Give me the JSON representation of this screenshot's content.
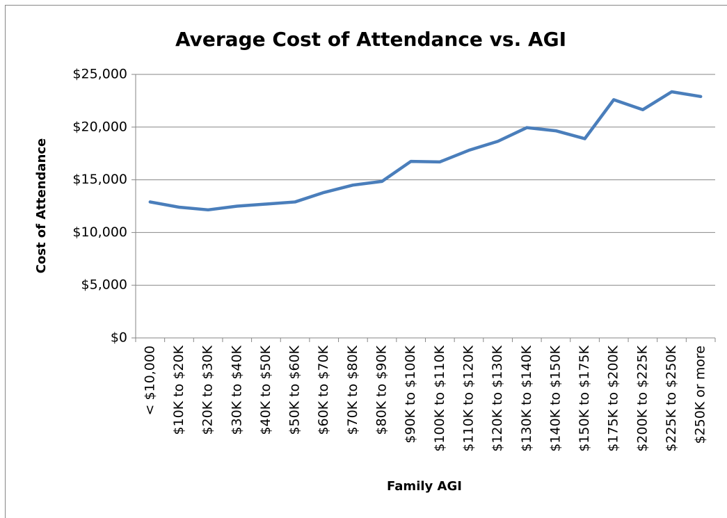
{
  "chart_data": {
    "type": "line",
    "title": "Average Cost of Attendance vs. AGI",
    "x_label": "Family AGI",
    "y_label": "Cost of Attendance",
    "categories": [
      "< $10,000",
      "$10K to $20K",
      "$20K to $30K",
      "$30K to $40K",
      "$40K to $50K",
      "$50K to $60K",
      "$60K to $70K",
      "$70K to $80K",
      "$80K to $90K",
      "$90K to $100K",
      "$100K to $110K",
      "$110K to $120K",
      "$120K to $130K",
      "$130K to $140K",
      "$140K to $150K",
      "$150K to $175K",
      "$175K to $200K",
      "$200K to $225K",
      "$225K to $250K",
      "$250K or more"
    ],
    "series": [
      {
        "name": "Cost of Attendance",
        "color": "#4a7ebb",
        "values": [
          12900,
          12400,
          12150,
          12500,
          12700,
          12900,
          13800,
          14500,
          14850,
          16750,
          16700,
          17800,
          18650,
          19950,
          19650,
          18900,
          22600,
          21650,
          23350,
          22900
        ]
      }
    ],
    "ylim": [
      0,
      25000
    ],
    "yticks": [
      {
        "value": 0,
        "label": "$0"
      },
      {
        "value": 5000,
        "label": "$5,000"
      },
      {
        "value": 10000,
        "label": "$10,000"
      },
      {
        "value": 15000,
        "label": "$15,000"
      },
      {
        "value": 20000,
        "label": "$20,000"
      },
      {
        "value": 25000,
        "label": "$25,000"
      }
    ],
    "grid": true
  }
}
